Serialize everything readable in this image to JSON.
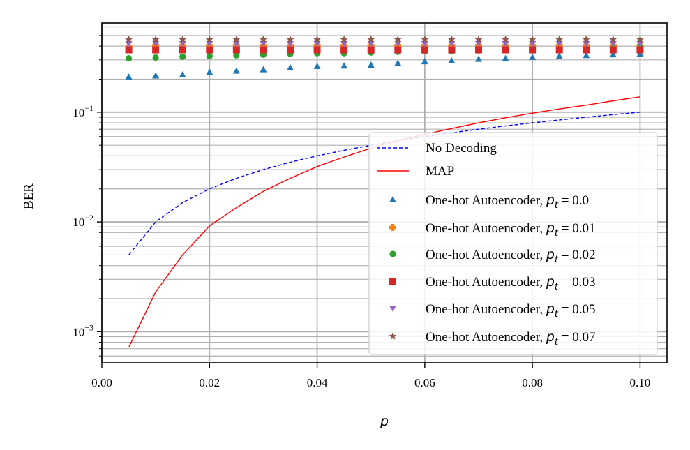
{
  "chart_data": {
    "type": "scatter",
    "title": "",
    "xlabel": "p",
    "ylabel": "BER",
    "yscale": "log",
    "xlim": [
      0.0,
      0.105
    ],
    "ylim": [
      0.00052,
      0.65
    ],
    "grid": true,
    "legend_position": "bottom-right",
    "x_ticks": [
      "0.00",
      "0.02",
      "0.04",
      "0.06",
      "0.08",
      "0.10"
    ],
    "x_tick_values": [
      0.0,
      0.02,
      0.04,
      0.06,
      0.08,
      0.1
    ],
    "y_ticks": [
      {
        "base": "10",
        "exp": "−1",
        "value": 0.1
      },
      {
        "base": "10",
        "exp": "−2",
        "value": 0.01
      },
      {
        "base": "10",
        "exp": "−3",
        "value": 0.001
      }
    ],
    "lines": [
      {
        "name": "No Decoding",
        "color": "#0000ff",
        "style": "dashed",
        "x": [
          0.005,
          0.01,
          0.015,
          0.02,
          0.025,
          0.03,
          0.035,
          0.04,
          0.045,
          0.05,
          0.055,
          0.06,
          0.065,
          0.07,
          0.075,
          0.08,
          0.085,
          0.09,
          0.095,
          0.1
        ],
        "y": [
          0.005,
          0.01,
          0.015,
          0.02,
          0.025,
          0.03,
          0.035,
          0.04,
          0.045,
          0.05,
          0.055,
          0.06,
          0.065,
          0.07,
          0.075,
          0.08,
          0.085,
          0.09,
          0.095,
          0.1
        ]
      },
      {
        "name": "MAP",
        "color": "#ff0000",
        "style": "solid",
        "x": [
          0.005,
          0.01,
          0.015,
          0.02,
          0.025,
          0.03,
          0.035,
          0.04,
          0.045,
          0.05,
          0.055,
          0.06,
          0.065,
          0.07,
          0.075,
          0.08,
          0.085,
          0.09,
          0.095,
          0.1
        ],
        "y": [
          0.00072,
          0.0023,
          0.005,
          0.0092,
          0.0135,
          0.019,
          0.025,
          0.032,
          0.039,
          0.047,
          0.055,
          0.063,
          0.071,
          0.08,
          0.089,
          0.098,
          0.107,
          0.116,
          0.127,
          0.138
        ]
      }
    ],
    "series": [
      {
        "name": "One-hot Autoencoder, ",
        "pt_label": "p",
        "pt_sub": "t",
        "pt_value": " = 0.0",
        "color": "#1f77b4",
        "marker": "triangle-up",
        "x": [
          0.005,
          0.01,
          0.015,
          0.02,
          0.025,
          0.03,
          0.035,
          0.04,
          0.045,
          0.05,
          0.055,
          0.06,
          0.065,
          0.07,
          0.075,
          0.08,
          0.085,
          0.09,
          0.095,
          0.1
        ],
        "y": [
          0.21,
          0.215,
          0.22,
          0.232,
          0.238,
          0.245,
          0.255,
          0.262,
          0.265,
          0.27,
          0.28,
          0.29,
          0.295,
          0.305,
          0.31,
          0.318,
          0.325,
          0.33,
          0.335,
          0.34
        ]
      },
      {
        "name": "One-hot Autoencoder, ",
        "pt_label": "p",
        "pt_sub": "t",
        "pt_value": " = 0.01",
        "color": "#ff7f0e",
        "marker": "plus",
        "x": [
          0.005,
          0.01,
          0.015,
          0.02,
          0.025,
          0.03,
          0.035,
          0.04,
          0.045,
          0.05,
          0.055,
          0.06,
          0.065,
          0.07,
          0.075,
          0.08,
          0.085,
          0.09,
          0.095,
          0.1
        ],
        "y": [
          0.4,
          0.405,
          0.405,
          0.405,
          0.405,
          0.405,
          0.405,
          0.405,
          0.405,
          0.405,
          0.405,
          0.405,
          0.405,
          0.405,
          0.405,
          0.405,
          0.405,
          0.405,
          0.405,
          0.405
        ]
      },
      {
        "name": "One-hot Autoencoder, ",
        "pt_label": "p",
        "pt_sub": "t",
        "pt_value": " = 0.02",
        "color": "#2ca02c",
        "marker": "circle",
        "x": [
          0.005,
          0.01,
          0.015,
          0.02,
          0.025,
          0.03,
          0.035,
          0.04,
          0.045,
          0.05,
          0.055,
          0.06,
          0.065,
          0.07,
          0.075,
          0.08,
          0.085,
          0.09,
          0.095,
          0.1
        ],
        "y": [
          0.31,
          0.315,
          0.32,
          0.325,
          0.33,
          0.335,
          0.34,
          0.345,
          0.345,
          0.35,
          0.355,
          0.36,
          0.36,
          0.365,
          0.37,
          0.37,
          0.375,
          0.375,
          0.38,
          0.385
        ]
      },
      {
        "name": "One-hot Autoencoder, ",
        "pt_label": "p",
        "pt_sub": "t",
        "pt_value": " = 0.03",
        "color": "#d62728",
        "marker": "square",
        "x": [
          0.005,
          0.01,
          0.015,
          0.02,
          0.025,
          0.03,
          0.035,
          0.04,
          0.045,
          0.05,
          0.055,
          0.06,
          0.065,
          0.07,
          0.075,
          0.08,
          0.085,
          0.09,
          0.095,
          0.1
        ],
        "y": [
          0.37,
          0.37,
          0.37,
          0.37,
          0.37,
          0.37,
          0.37,
          0.37,
          0.37,
          0.37,
          0.37,
          0.37,
          0.37,
          0.37,
          0.37,
          0.37,
          0.37,
          0.37,
          0.37,
          0.37
        ]
      },
      {
        "name": "One-hot Autoencoder, ",
        "pt_label": "p",
        "pt_sub": "t",
        "pt_value": " = 0.05",
        "color": "#9467bd",
        "marker": "triangle-down",
        "x": [
          0.005,
          0.01,
          0.015,
          0.02,
          0.025,
          0.03,
          0.035,
          0.04,
          0.045,
          0.05,
          0.055,
          0.06,
          0.065,
          0.07,
          0.075,
          0.08,
          0.085,
          0.09,
          0.095,
          0.1
        ],
        "y": [
          0.42,
          0.42,
          0.42,
          0.42,
          0.42,
          0.42,
          0.42,
          0.42,
          0.42,
          0.42,
          0.42,
          0.42,
          0.42,
          0.42,
          0.42,
          0.42,
          0.42,
          0.42,
          0.42,
          0.42
        ]
      },
      {
        "name": "One-hot Autoencoder, ",
        "pt_label": "p",
        "pt_sub": "t",
        "pt_value": " = 0.07",
        "color": "#8c564b",
        "marker": "star",
        "x": [
          0.005,
          0.01,
          0.015,
          0.02,
          0.025,
          0.03,
          0.035,
          0.04,
          0.045,
          0.05,
          0.055,
          0.06,
          0.065,
          0.07,
          0.075,
          0.08,
          0.085,
          0.09,
          0.095,
          0.1
        ],
        "y": [
          0.46,
          0.46,
          0.46,
          0.46,
          0.46,
          0.46,
          0.46,
          0.46,
          0.46,
          0.46,
          0.46,
          0.46,
          0.46,
          0.46,
          0.46,
          0.46,
          0.46,
          0.46,
          0.46,
          0.46
        ]
      }
    ]
  }
}
